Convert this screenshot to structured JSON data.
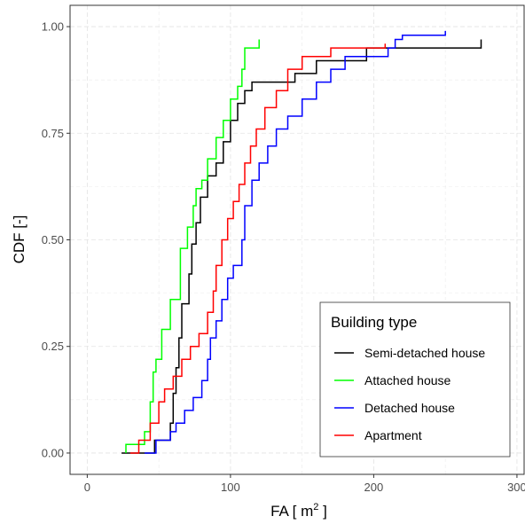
{
  "chart_data": {
    "type": "line",
    "step": true,
    "xlabel": "FA [ m",
    "xlabel_sup": "2",
    "xlabel_end": " ]",
    "ylabel": "CDF [-]",
    "xlim": [
      -12,
      305
    ],
    "ylim": [
      -0.05,
      1.05
    ],
    "x_ticks": [
      0,
      100,
      200,
      300
    ],
    "x_tick_labels": [
      "0",
      "100",
      "200",
      "300"
    ],
    "y_ticks": [
      0.0,
      0.25,
      0.5,
      0.75,
      1.0
    ],
    "y_tick_labels": [
      "0.00",
      "0.25",
      "0.50",
      "0.75",
      "1.00"
    ],
    "grid": true,
    "legend_title": "Building type",
    "legend_position": "bottom-right",
    "series": [
      {
        "name": "Semi-detached house",
        "color": "#000000",
        "points": [
          [
            24,
            0
          ],
          [
            47,
            0
          ],
          [
            47,
            0.03
          ],
          [
            58,
            0.03
          ],
          [
            58,
            0.07
          ],
          [
            60,
            0.07
          ],
          [
            60,
            0.14
          ],
          [
            62,
            0.14
          ],
          [
            62,
            0.2
          ],
          [
            64,
            0.2
          ],
          [
            64,
            0.27
          ],
          [
            66,
            0.27
          ],
          [
            66,
            0.35
          ],
          [
            71,
            0.35
          ],
          [
            71,
            0.42
          ],
          [
            73,
            0.42
          ],
          [
            73,
            0.49
          ],
          [
            76,
            0.49
          ],
          [
            76,
            0.54
          ],
          [
            79,
            0.54
          ],
          [
            79,
            0.6
          ],
          [
            84,
            0.6
          ],
          [
            84,
            0.65
          ],
          [
            90,
            0.65
          ],
          [
            90,
            0.68
          ],
          [
            95,
            0.68
          ],
          [
            95,
            0.73
          ],
          [
            100,
            0.73
          ],
          [
            100,
            0.78
          ],
          [
            105,
            0.78
          ],
          [
            105,
            0.82
          ],
          [
            110,
            0.82
          ],
          [
            110,
            0.85
          ],
          [
            115,
            0.85
          ],
          [
            115,
            0.87
          ],
          [
            145,
            0.87
          ],
          [
            145,
            0.89
          ],
          [
            160,
            0.89
          ],
          [
            160,
            0.92
          ],
          [
            195,
            0.92
          ],
          [
            195,
            0.95
          ],
          [
            275,
            0.95
          ],
          [
            275,
            0.97
          ]
        ]
      },
      {
        "name": "Attached house",
        "color": "#00ff00",
        "points": [
          [
            27,
            0
          ],
          [
            27,
            0.02
          ],
          [
            40,
            0.02
          ],
          [
            40,
            0.05
          ],
          [
            44,
            0.05
          ],
          [
            44,
            0.12
          ],
          [
            46,
            0.12
          ],
          [
            46,
            0.19
          ],
          [
            48,
            0.19
          ],
          [
            48,
            0.22
          ],
          [
            52,
            0.22
          ],
          [
            52,
            0.29
          ],
          [
            58,
            0.29
          ],
          [
            58,
            0.36
          ],
          [
            65,
            0.36
          ],
          [
            65,
            0.48
          ],
          [
            70,
            0.48
          ],
          [
            70,
            0.53
          ],
          [
            74,
            0.53
          ],
          [
            74,
            0.58
          ],
          [
            76,
            0.58
          ],
          [
            76,
            0.62
          ],
          [
            80,
            0.62
          ],
          [
            80,
            0.64
          ],
          [
            84,
            0.64
          ],
          [
            84,
            0.69
          ],
          [
            90,
            0.69
          ],
          [
            90,
            0.74
          ],
          [
            95,
            0.74
          ],
          [
            95,
            0.78
          ],
          [
            100,
            0.78
          ],
          [
            100,
            0.83
          ],
          [
            105,
            0.83
          ],
          [
            105,
            0.86
          ],
          [
            108,
            0.86
          ],
          [
            108,
            0.9
          ],
          [
            110,
            0.9
          ],
          [
            110,
            0.95
          ],
          [
            120,
            0.95
          ],
          [
            120,
            0.97
          ]
        ]
      },
      {
        "name": "Detached house",
        "color": "#0000ff",
        "points": [
          [
            40,
            0
          ],
          [
            48,
            0
          ],
          [
            48,
            0.03
          ],
          [
            58,
            0.03
          ],
          [
            58,
            0.05
          ],
          [
            62,
            0.05
          ],
          [
            62,
            0.07
          ],
          [
            68,
            0.07
          ],
          [
            68,
            0.1
          ],
          [
            74,
            0.1
          ],
          [
            74,
            0.13
          ],
          [
            80,
            0.13
          ],
          [
            80,
            0.17
          ],
          [
            84,
            0.17
          ],
          [
            84,
            0.22
          ],
          [
            86,
            0.22
          ],
          [
            86,
            0.27
          ],
          [
            90,
            0.27
          ],
          [
            90,
            0.31
          ],
          [
            94,
            0.31
          ],
          [
            94,
            0.36
          ],
          [
            98,
            0.36
          ],
          [
            98,
            0.41
          ],
          [
            102,
            0.41
          ],
          [
            102,
            0.44
          ],
          [
            108,
            0.44
          ],
          [
            108,
            0.5
          ],
          [
            110,
            0.5
          ],
          [
            110,
            0.58
          ],
          [
            115,
            0.58
          ],
          [
            115,
            0.64
          ],
          [
            120,
            0.64
          ],
          [
            120,
            0.68
          ],
          [
            126,
            0.68
          ],
          [
            126,
            0.72
          ],
          [
            132,
            0.72
          ],
          [
            132,
            0.76
          ],
          [
            140,
            0.76
          ],
          [
            140,
            0.79
          ],
          [
            150,
            0.79
          ],
          [
            150,
            0.83
          ],
          [
            160,
            0.83
          ],
          [
            160,
            0.87
          ],
          [
            170,
            0.87
          ],
          [
            170,
            0.9
          ],
          [
            180,
            0.9
          ],
          [
            180,
            0.93
          ],
          [
            210,
            0.93
          ],
          [
            210,
            0.95
          ],
          [
            215,
            0.95
          ],
          [
            215,
            0.97
          ],
          [
            220,
            0.97
          ],
          [
            220,
            0.98
          ],
          [
            250,
            0.98
          ],
          [
            250,
            0.99
          ]
        ]
      },
      {
        "name": "Apartment",
        "color": "#ff0000",
        "points": [
          [
            30,
            0
          ],
          [
            36,
            0
          ],
          [
            36,
            0.03
          ],
          [
            44,
            0.03
          ],
          [
            44,
            0.07
          ],
          [
            50,
            0.07
          ],
          [
            50,
            0.12
          ],
          [
            54,
            0.12
          ],
          [
            54,
            0.15
          ],
          [
            60,
            0.15
          ],
          [
            60,
            0.18
          ],
          [
            66,
            0.18
          ],
          [
            66,
            0.22
          ],
          [
            72,
            0.22
          ],
          [
            72,
            0.25
          ],
          [
            78,
            0.25
          ],
          [
            78,
            0.28
          ],
          [
            84,
            0.28
          ],
          [
            84,
            0.33
          ],
          [
            88,
            0.33
          ],
          [
            88,
            0.38
          ],
          [
            90,
            0.38
          ],
          [
            90,
            0.44
          ],
          [
            94,
            0.44
          ],
          [
            94,
            0.5
          ],
          [
            98,
            0.5
          ],
          [
            98,
            0.55
          ],
          [
            102,
            0.55
          ],
          [
            102,
            0.59
          ],
          [
            106,
            0.59
          ],
          [
            106,
            0.63
          ],
          [
            110,
            0.63
          ],
          [
            110,
            0.68
          ],
          [
            114,
            0.68
          ],
          [
            114,
            0.72
          ],
          [
            118,
            0.72
          ],
          [
            118,
            0.76
          ],
          [
            124,
            0.76
          ],
          [
            124,
            0.81
          ],
          [
            132,
            0.81
          ],
          [
            132,
            0.85
          ],
          [
            140,
            0.85
          ],
          [
            140,
            0.9
          ],
          [
            150,
            0.9
          ],
          [
            150,
            0.93
          ],
          [
            170,
            0.93
          ],
          [
            170,
            0.95
          ],
          [
            208,
            0.95
          ],
          [
            208,
            0.96
          ]
        ]
      }
    ]
  }
}
